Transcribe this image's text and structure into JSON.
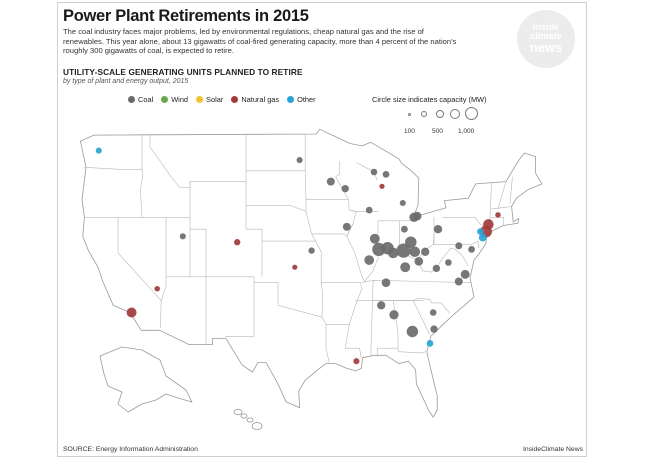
{
  "header": {
    "title": "Power Plant Retirements in 2015",
    "intro": "The coal industry faces major problems, led by environmental regulations, cheap natural gas and the rise of renewables. This year alone, about 13 gigawatts of coal-fired generating capacity, more than 4 percent of the nation's roughly 300 gigawatts of coal, is expected to retire."
  },
  "logo": {
    "line1": "inside",
    "line2": "climate",
    "line3": "news"
  },
  "map_info": {
    "subtitle": "UTILITY-SCALE GENERATING UNITS PLANNED TO RETIRE",
    "subnote": "by type of plant and energy output, 2015"
  },
  "legend": {
    "items": [
      {
        "label": "Coal",
        "color": "#6b6b6b"
      },
      {
        "label": "Wind",
        "color": "#6aa84f"
      },
      {
        "label": "Solar",
        "color": "#f1c232"
      },
      {
        "label": "Natural gas",
        "color": "#a23b3b"
      },
      {
        "label": "Other",
        "color": "#29a3d6"
      }
    ],
    "size_title": "Circle size indicates capacity (MW)",
    "sizes": [
      "100",
      "500",
      "1,000"
    ]
  },
  "plants": [
    {
      "type": "Other",
      "lon": -122.4,
      "lat": 47.6,
      "mw": 60
    },
    {
      "type": "Coal",
      "lon": -111.9,
      "lat": 40.4,
      "mw": 60
    },
    {
      "type": "Natural gas",
      "lon": -105.1,
      "lat": 39.9,
      "mw": 70
    },
    {
      "type": "Natural gas",
      "lon": -118.3,
      "lat": 34.0,
      "mw": 300
    },
    {
      "type": "Natural gas",
      "lon": -115.1,
      "lat": 36.0,
      "mw": 40
    },
    {
      "type": "Coal",
      "lon": -97.3,
      "lat": 46.8,
      "mw": 60
    },
    {
      "type": "Coal",
      "lon": -93.4,
      "lat": 45.0,
      "mw": 160
    },
    {
      "type": "Coal",
      "lon": -91.6,
      "lat": 44.4,
      "mw": 120
    },
    {
      "type": "Coal",
      "lon": -88.0,
      "lat": 45.8,
      "mw": 80
    },
    {
      "type": "Coal",
      "lon": -86.5,
      "lat": 45.6,
      "mw": 90
    },
    {
      "type": "Coal",
      "lon": -95.8,
      "lat": 39.2,
      "mw": 70
    },
    {
      "type": "Coal",
      "lon": -91.4,
      "lat": 41.2,
      "mw": 150
    },
    {
      "type": "Coal",
      "lon": -88.6,
      "lat": 42.6,
      "mw": 90
    },
    {
      "type": "Coal",
      "lon": -84.4,
      "lat": 43.2,
      "mw": 60
    },
    {
      "type": "Coal",
      "lon": -84.2,
      "lat": 41.0,
      "mw": 90
    },
    {
      "type": "Coal",
      "lon": -83.0,
      "lat": 42.0,
      "mw": 250
    },
    {
      "type": "Coal",
      "lon": -82.6,
      "lat": 42.1,
      "mw": 200
    },
    {
      "type": "Coal",
      "lon": -87.9,
      "lat": 40.2,
      "mw": 300
    },
    {
      "type": "Coal",
      "lon": -87.4,
      "lat": 39.3,
      "mw": 650
    },
    {
      "type": "Coal",
      "lon": -88.6,
      "lat": 38.4,
      "mw": 280
    },
    {
      "type": "Coal",
      "lon": -86.3,
      "lat": 39.4,
      "mw": 550
    },
    {
      "type": "Coal",
      "lon": -85.6,
      "lat": 39.0,
      "mw": 350
    },
    {
      "type": "Coal",
      "lon": -84.3,
      "lat": 39.2,
      "mw": 800
    },
    {
      "type": "Coal",
      "lon": -83.4,
      "lat": 39.9,
      "mw": 450
    },
    {
      "type": "Coal",
      "lon": -82.9,
      "lat": 39.1,
      "mw": 350
    },
    {
      "type": "Coal",
      "lon": -81.6,
      "lat": 39.1,
      "mw": 180
    },
    {
      "type": "Coal",
      "lon": -84.1,
      "lat": 37.8,
      "mw": 300
    },
    {
      "type": "Coal",
      "lon": -82.4,
      "lat": 38.3,
      "mw": 200
    },
    {
      "type": "Coal",
      "lon": -80.2,
      "lat": 37.7,
      "mw": 120
    },
    {
      "type": "Coal",
      "lon": -78.7,
      "lat": 38.2,
      "mw": 80
    },
    {
      "type": "Coal",
      "lon": -80.0,
      "lat": 41.0,
      "mw": 180
    },
    {
      "type": "Coal",
      "lon": -76.6,
      "lat": 37.2,
      "mw": 220
    },
    {
      "type": "Coal",
      "lon": -77.4,
      "lat": 36.6,
      "mw": 160
    },
    {
      "type": "Coal",
      "lon": -86.5,
      "lat": 36.5,
      "mw": 200
    },
    {
      "type": "Coal",
      "lon": -87.1,
      "lat": 34.6,
      "mw": 180
    },
    {
      "type": "Coal",
      "lon": -85.5,
      "lat": 33.8,
      "mw": 250
    },
    {
      "type": "Coal",
      "lon": -83.2,
      "lat": 32.4,
      "mw": 450
    },
    {
      "type": "Coal",
      "lon": -80.5,
      "lat": 32.6,
      "mw": 120
    },
    {
      "type": "Coal",
      "lon": -80.6,
      "lat": 34.0,
      "mw": 80
    },
    {
      "type": "Coal",
      "lon": -77.4,
      "lat": 39.6,
      "mw": 100
    },
    {
      "type": "Coal",
      "lon": -75.8,
      "lat": 39.3,
      "mw": 90
    },
    {
      "type": "Natural gas",
      "lon": -74.0,
      "lat": 40.8,
      "mw": 500
    },
    {
      "type": "Natural gas",
      "lon": -73.7,
      "lat": 41.4,
      "mw": 350
    },
    {
      "type": "Natural gas",
      "lon": -90.2,
      "lat": 29.9,
      "mw": 60
    },
    {
      "type": "Natural gas",
      "lon": -97.9,
      "lat": 37.8,
      "mw": 30
    },
    {
      "type": "Natural gas",
      "lon": -87.0,
      "lat": 44.6,
      "mw": 30
    },
    {
      "type": "Natural gas",
      "lon": -72.5,
      "lat": 42.2,
      "mw": 40
    },
    {
      "type": "Other",
      "lon": -74.4,
      "lat": 40.3,
      "mw": 150
    },
    {
      "type": "Other",
      "lon": -74.7,
      "lat": 40.8,
      "mw": 80
    },
    {
      "type": "Other",
      "lon": -81.0,
      "lat": 31.4,
      "mw": 90
    }
  ],
  "footer": {
    "source": "SOURCE: Energy Information Administration",
    "credit": "InsideClimate News"
  }
}
